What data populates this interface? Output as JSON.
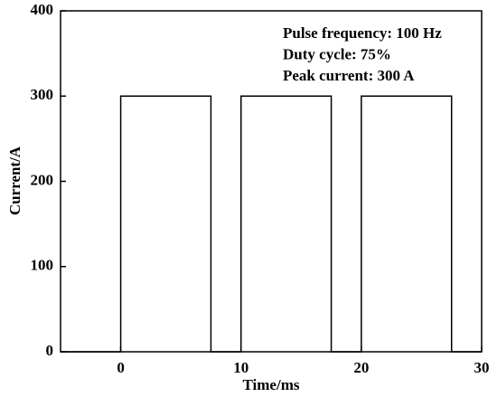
{
  "chart_data": {
    "type": "line",
    "x_label": "Time/ms",
    "y_label": "Current/A",
    "annotations": [
      "Pulse frequency: 100 Hz",
      "Duty cycle: 75%",
      "Peak current: 300 A"
    ],
    "x": [
      -5,
      0,
      0,
      7.5,
      7.5,
      10,
      10,
      17.5,
      17.5,
      20,
      20,
      27.5,
      27.5,
      30
    ],
    "values": [
      0,
      0,
      300,
      300,
      0,
      0,
      300,
      300,
      0,
      0,
      300,
      300,
      0,
      0
    ],
    "color": "#000000",
    "xlim": [
      -5,
      30
    ],
    "xticks": [
      0,
      10,
      20,
      30
    ],
    "ylim": [
      0,
      400
    ],
    "yticks": [
      0,
      100,
      200,
      300,
      400
    ],
    "grid": false
  }
}
